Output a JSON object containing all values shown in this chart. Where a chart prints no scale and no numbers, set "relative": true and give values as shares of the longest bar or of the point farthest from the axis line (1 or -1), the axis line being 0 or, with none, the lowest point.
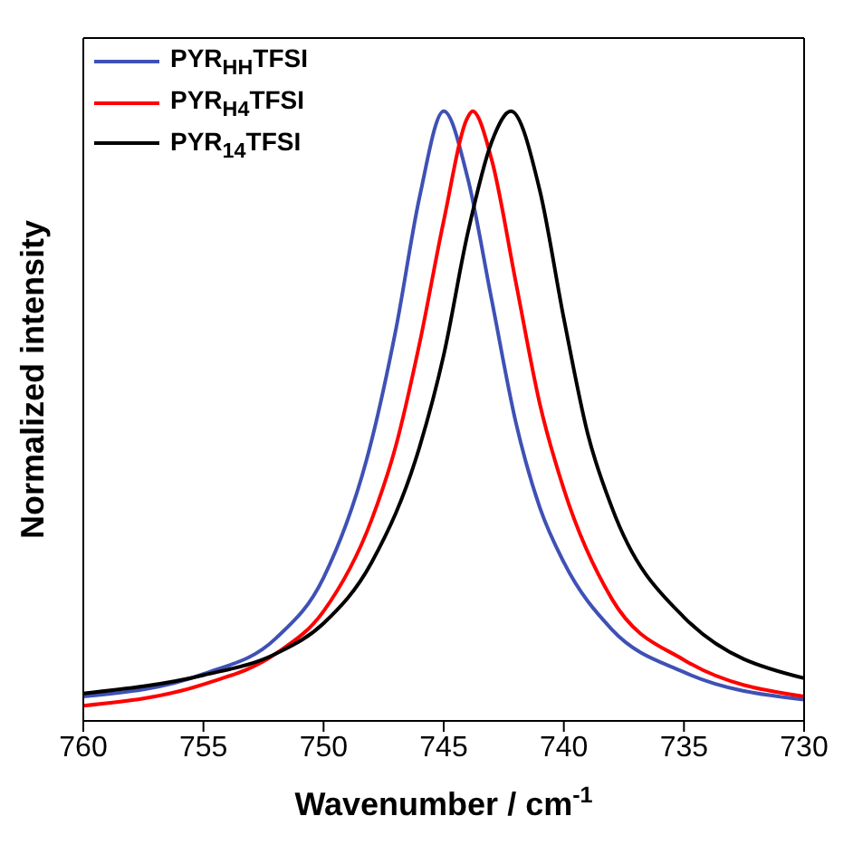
{
  "chart_data": {
    "type": "line",
    "relative": true,
    "xlabel": "Wavenumber / cm$^{-1}$",
    "ylabel": "Normalized intensity",
    "xlim": [
      760,
      730
    ],
    "xticks": [
      760,
      755,
      750,
      745,
      740,
      735,
      730
    ],
    "legend": "top left",
    "line_style": "solid",
    "marker": "none",
    "grid": false,
    "series": [
      {
        "name": "PYR$_{HH}$TFSI",
        "color": "#3f51b5",
        "x": [
          760,
          755,
          752,
          750,
          748,
          747,
          746,
          745,
          744,
          743,
          742,
          741,
          740,
          738,
          735,
          730
        ],
        "values": [
          0.04,
          0.077,
          0.135,
          0.235,
          0.46,
          0.64,
          0.86,
          1.0,
          0.89,
          0.69,
          0.49,
          0.35,
          0.26,
          0.15,
          0.08,
          0.035
        ]
      },
      {
        "name": "PYR$_{H4}$TFSI",
        "color": "#ff0000",
        "x": [
          760,
          755,
          752,
          750,
          748,
          747,
          746,
          745,
          744,
          743.8,
          743,
          742,
          741,
          740,
          738,
          735,
          730
        ],
        "values": [
          0.025,
          0.06,
          0.11,
          0.18,
          0.33,
          0.45,
          0.62,
          0.82,
          0.99,
          1.0,
          0.92,
          0.72,
          0.52,
          0.38,
          0.2,
          0.1,
          0.04
        ]
      },
      {
        "name": "PYR$_{14}$TFSI",
        "color": "#000000",
        "x": [
          760,
          755,
          752,
          750,
          748,
          746,
          745,
          744,
          743,
          742.2,
          741,
          740,
          739,
          738,
          735,
          730
        ],
        "values": [
          0.045,
          0.075,
          0.11,
          0.16,
          0.26,
          0.45,
          0.6,
          0.8,
          0.95,
          1.0,
          0.87,
          0.66,
          0.47,
          0.35,
          0.17,
          0.07
        ]
      }
    ]
  }
}
